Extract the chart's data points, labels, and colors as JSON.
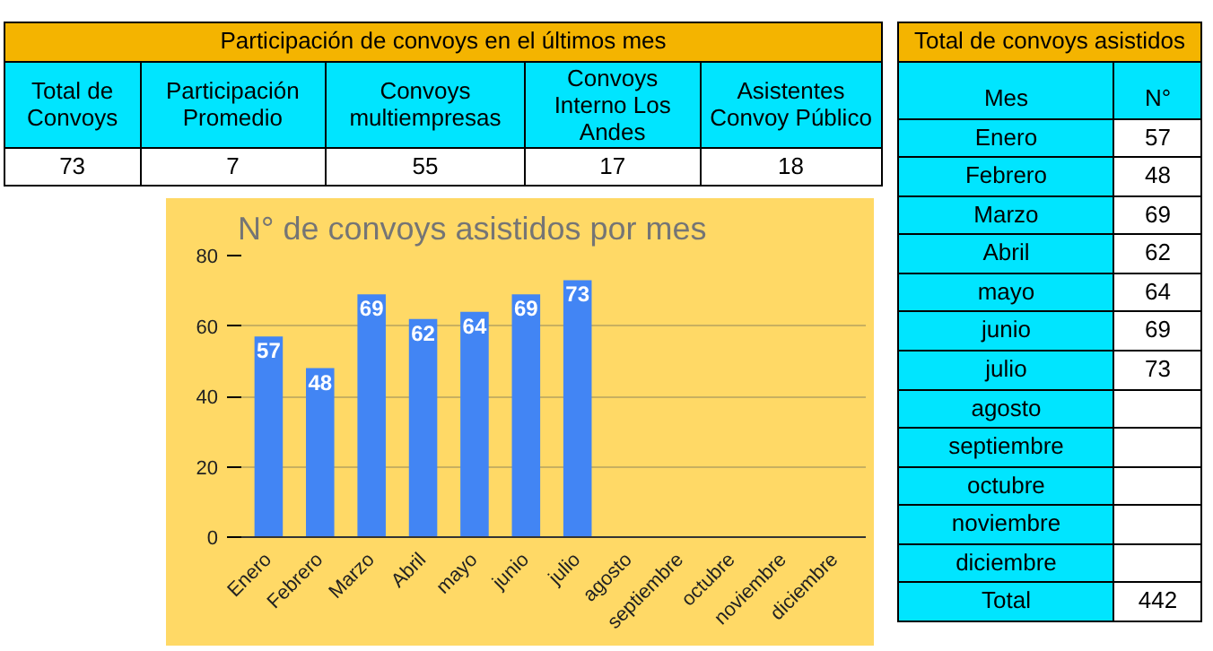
{
  "chart_data": {
    "type": "bar",
    "title": "N° de convoys asistidos por mes",
    "categories": [
      "Enero",
      "Febrero",
      "Marzo",
      "Abril",
      "mayo",
      "junio",
      "julio",
      "agosto",
      "septiembre",
      "octubre",
      "noviembre",
      "diciembre"
    ],
    "values": [
      57,
      48,
      69,
      62,
      64,
      69,
      73,
      null,
      null,
      null,
      null,
      null
    ],
    "color": "#4285f4",
    "ylim": [
      0,
      80
    ],
    "yticks": [
      0,
      20,
      40,
      60,
      80
    ],
    "grid": "y",
    "data_labels": true,
    "annotations": [
      "Participación de convoys en el últimos mes",
      "Total de Convoys",
      "Participación Promedio",
      "Convoys multiempresas",
      "Convoys Interno Los Andes",
      "Asistentes Convoy Público",
      "73",
      "7",
      "55",
      "17",
      "18",
      "Total de convoys asistidos",
      "Mes",
      "N°",
      "Total",
      "442",
      "57",
      "48",
      "69",
      "62",
      "64",
      "69",
      "73"
    ]
  }
}
